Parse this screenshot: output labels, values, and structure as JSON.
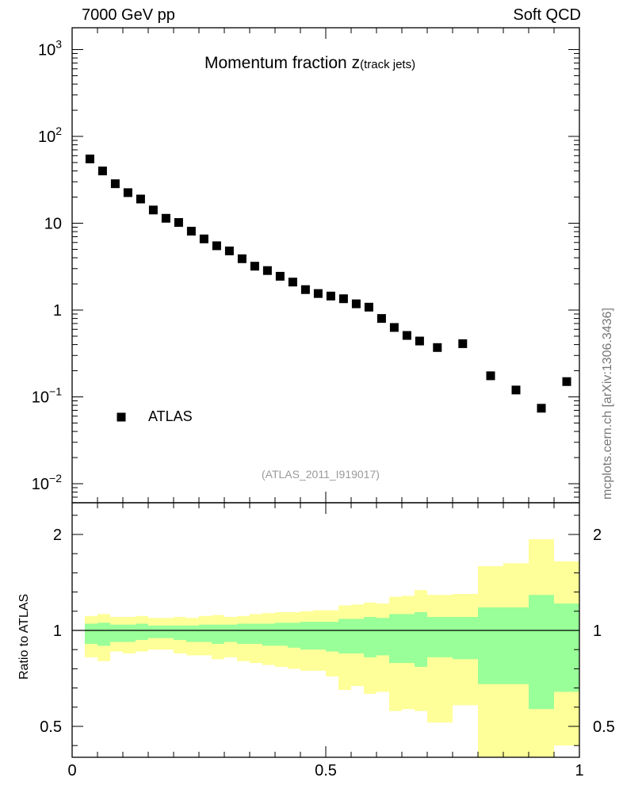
{
  "header": {
    "left": "7000 GeV pp",
    "right": "Soft QCD"
  },
  "title": {
    "main": "Momentum fraction z",
    "sub": "(track jets)"
  },
  "source_note": "(ATLAS_2011_I919017)",
  "side_label": "mcplots.cern.ch [arXiv:1306.3436]",
  "legend": {
    "label": "ATLAS",
    "placement": "bottom-left"
  },
  "colors": {
    "marker": "#000000",
    "band_inner": "#99ff99",
    "band_outer": "#ffff99",
    "ref_line": "#000000"
  },
  "chart_data": [
    {
      "type": "scatter",
      "scale": "log",
      "ylim": [
        0.006,
        1500
      ],
      "xlim": [
        0,
        1
      ],
      "ytick_labels": [
        {
          "base": "10",
          "exp": "3"
        },
        {
          "base": "10",
          "exp": "2"
        },
        {
          "base": "10",
          "exp": ""
        },
        {
          "base": "1",
          "exp": ""
        },
        {
          "base": "10",
          "exp": "−1"
        },
        {
          "base": "10",
          "exp": "−2"
        }
      ],
      "series": [
        {
          "name": "ATLAS",
          "x": [
            0.035,
            0.06,
            0.085,
            0.11,
            0.135,
            0.16,
            0.185,
            0.21,
            0.235,
            0.26,
            0.285,
            0.31,
            0.335,
            0.36,
            0.385,
            0.41,
            0.435,
            0.46,
            0.485,
            0.51,
            0.535,
            0.56,
            0.585,
            0.61,
            0.635,
            0.66,
            0.685,
            0.72,
            0.77,
            0.825,
            0.875,
            0.925,
            0.975
          ],
          "y": [
            55,
            40,
            28.5,
            22.5,
            19,
            14.2,
            11.4,
            10.2,
            8.1,
            6.6,
            5.5,
            4.8,
            3.9,
            3.2,
            2.85,
            2.45,
            2.1,
            1.72,
            1.55,
            1.45,
            1.35,
            1.18,
            1.08,
            0.8,
            0.63,
            0.51,
            0.44,
            0.37,
            0.41,
            0.175,
            0.12,
            0.074,
            0.15
          ]
        }
      ]
    },
    {
      "type": "area",
      "ylabel": "Ratio to ATLAS",
      "ylim": [
        0.35,
        2.3
      ],
      "xlim": [
        0,
        1
      ],
      "x_ticks": [
        "0",
        "0.5",
        "1"
      ],
      "y_ticks": [
        "0.5",
        "1",
        "2"
      ],
      "edges": [
        0.025,
        0.05,
        0.075,
        0.1,
        0.125,
        0.15,
        0.175,
        0.2,
        0.225,
        0.25,
        0.275,
        0.3,
        0.325,
        0.35,
        0.375,
        0.4,
        0.425,
        0.45,
        0.475,
        0.5,
        0.525,
        0.55,
        0.575,
        0.6,
        0.625,
        0.65,
        0.675,
        0.7,
        0.75,
        0.8,
        0.85,
        0.9,
        0.95,
        1.0
      ],
      "inner_up": [
        1.07,
        1.08,
        1.06,
        1.06,
        1.07,
        1.05,
        1.05,
        1.05,
        1.05,
        1.06,
        1.06,
        1.06,
        1.07,
        1.07,
        1.07,
        1.08,
        1.08,
        1.09,
        1.09,
        1.09,
        1.12,
        1.12,
        1.14,
        1.13,
        1.17,
        1.17,
        1.19,
        1.14,
        1.14,
        1.24,
        1.24,
        1.37,
        1.28
      ],
      "inner_down": [
        0.93,
        0.92,
        0.94,
        0.94,
        0.95,
        0.96,
        0.96,
        0.95,
        0.94,
        0.94,
        0.93,
        0.94,
        0.93,
        0.93,
        0.92,
        0.92,
        0.91,
        0.9,
        0.9,
        0.89,
        0.88,
        0.88,
        0.86,
        0.87,
        0.83,
        0.83,
        0.81,
        0.86,
        0.85,
        0.72,
        0.72,
        0.59,
        0.68
      ],
      "outer_up": [
        1.15,
        1.17,
        1.14,
        1.14,
        1.15,
        1.13,
        1.13,
        1.14,
        1.13,
        1.15,
        1.16,
        1.14,
        1.15,
        1.17,
        1.18,
        1.19,
        1.19,
        1.2,
        1.21,
        1.21,
        1.26,
        1.27,
        1.29,
        1.28,
        1.35,
        1.36,
        1.42,
        1.37,
        1.38,
        1.67,
        1.7,
        1.95,
        1.72
      ],
      "outer_down": [
        0.86,
        0.84,
        0.89,
        0.88,
        0.89,
        0.9,
        0.9,
        0.88,
        0.87,
        0.87,
        0.85,
        0.86,
        0.84,
        0.83,
        0.82,
        0.81,
        0.8,
        0.79,
        0.79,
        0.76,
        0.69,
        0.71,
        0.67,
        0.68,
        0.58,
        0.59,
        0.58,
        0.52,
        0.61,
        0.28,
        0.28,
        0.18,
        0.4
      ]
    }
  ]
}
